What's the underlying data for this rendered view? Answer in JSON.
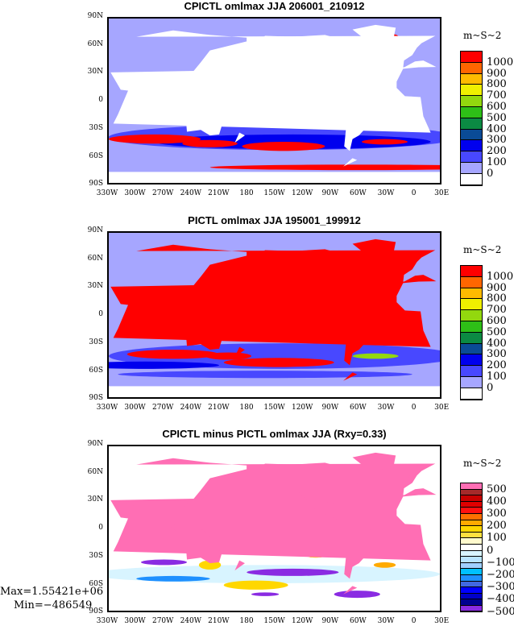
{
  "panels": [
    {
      "title": "CPICTL omlmax JJA 206001_210912",
      "units": "m~S~2",
      "land_color": "#ffffff",
      "ocean_color": "#a6a6ff",
      "levels": [
        "1000",
        "900",
        "800",
        "700",
        "600",
        "500",
        "400",
        "300",
        "200",
        "100",
        "0"
      ],
      "colors": [
        "#ff0000",
        "#ff6600",
        "#ffbb00",
        "#f0f000",
        "#93d80e",
        "#2ebf17",
        "#0b8a43",
        "#0a4b96",
        "#0000ee",
        "#4848ff",
        "#a6a6ff",
        "#ffffff"
      ]
    },
    {
      "title": "PICTL omlmax JJA 195001_199912",
      "units": "m~S~2",
      "land_color": "#ff0000",
      "ocean_color": "#a6a6ff",
      "levels": [
        "1000",
        "900",
        "800",
        "700",
        "600",
        "500",
        "400",
        "300",
        "200",
        "100",
        "0"
      ],
      "colors": [
        "#ff0000",
        "#ff6600",
        "#ffbb00",
        "#f0f000",
        "#93d80e",
        "#2ebf17",
        "#0b8a43",
        "#0a4b96",
        "#0000ee",
        "#4848ff",
        "#a6a6ff",
        "#ffffff"
      ]
    },
    {
      "title": "CPICTL minus PICTL omlmax JJA (Rxy=0.33)",
      "units": "m~S~2",
      "land_color": "#ff6eb4",
      "ocean_color": "#ffffff",
      "levels": [
        "500",
        "400",
        "300",
        "200",
        "100",
        "0",
        "−100",
        "−200",
        "−300",
        "−400",
        "−500"
      ],
      "colors": [
        "#ff6eb4",
        "#a52a2a",
        "#c80000",
        "#e00000",
        "#ff1010",
        "#ff7000",
        "#ffaa00",
        "#ffd700",
        "#ffe040",
        "#fffacd",
        "#ffffff",
        "#d8f4ff",
        "#b8e4ff",
        "#a0d0ff",
        "#00c0ff",
        "#1e90ff",
        "#4169e1",
        "#0000ff",
        "#0000c8",
        "#000090",
        "#8a2be2"
      ],
      "max_text": "Max=1.55421e+06",
      "min_text": "Min=−486549"
    }
  ],
  "chart_data": {
    "type": "heatmap",
    "title": [
      "CPICTL omlmax JJA 206001_210912",
      "PICTL omlmax JJA 195001_199912",
      "CPICTL minus PICTL omlmax JJA (Rxy=0.33)"
    ],
    "xlim": [
      -330,
      30
    ],
    "ylim": [
      -90,
      90
    ],
    "xticks": [
      "330W",
      "300W",
      "270W",
      "240W",
      "210W",
      "180",
      "150W",
      "120W",
      "90W",
      "60W",
      "30W",
      "0",
      "30E"
    ],
    "yticks": [
      "90N",
      "60N",
      "30N",
      "0",
      "30S",
      "60S",
      "90S"
    ],
    "colorbar_units": "m~S~2"
  }
}
